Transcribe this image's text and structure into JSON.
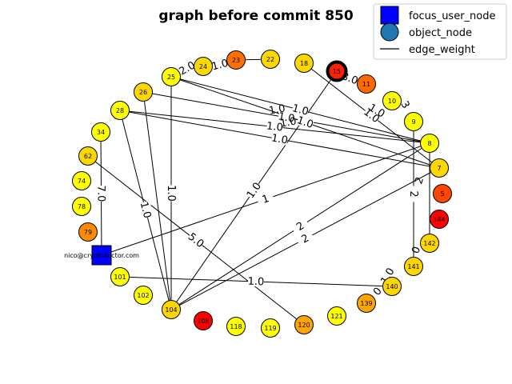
{
  "title": "graph before commit 850",
  "legend": {
    "placement": "top-right",
    "items": [
      {
        "label": "focus_user_node",
        "kind": "square",
        "color": "#0000ff"
      },
      {
        "label": "object_node",
        "kind": "circle",
        "color": "#1f77b4"
      },
      {
        "label": "edge_weight",
        "kind": "line",
        "color": "#000000"
      }
    ]
  },
  "focus_node": {
    "id": "nico@cryptosector.com",
    "label": "nico@cryptosector.com",
    "color": "#0000ff"
  },
  "nodes": [
    {
      "id": "15",
      "color": "#ff2000",
      "highlight": true
    },
    {
      "id": "11",
      "color": "#ff6a00"
    },
    {
      "id": "10",
      "color": "#ffff00"
    },
    {
      "id": "9",
      "color": "#ffff00"
    },
    {
      "id": "8",
      "color": "#ffff00"
    },
    {
      "id": "7",
      "color": "#ffd700"
    },
    {
      "id": "5",
      "color": "#ff4500"
    },
    {
      "id": "144",
      "color": "#ff0000"
    },
    {
      "id": "142",
      "color": "#ffd700"
    },
    {
      "id": "141",
      "color": "#ffd700"
    },
    {
      "id": "140",
      "color": "#ffd700"
    },
    {
      "id": "139",
      "color": "#ffa500"
    },
    {
      "id": "121",
      "color": "#ffff00"
    },
    {
      "id": "120",
      "color": "#ffa500"
    },
    {
      "id": "119",
      "color": "#ffff00"
    },
    {
      "id": "118",
      "color": "#ffff00"
    },
    {
      "id": "108",
      "color": "#ff0000"
    },
    {
      "id": "104",
      "color": "#ffd700"
    },
    {
      "id": "102",
      "color": "#ffff00"
    },
    {
      "id": "101",
      "color": "#ffff00"
    },
    {
      "id": "79",
      "color": "#ff8c00"
    },
    {
      "id": "78",
      "color": "#ffff00"
    },
    {
      "id": "74",
      "color": "#ffff00"
    },
    {
      "id": "62",
      "color": "#ffd700"
    },
    {
      "id": "34",
      "color": "#ffff00"
    },
    {
      "id": "28",
      "color": "#ffff00"
    },
    {
      "id": "26",
      "color": "#ffd700"
    },
    {
      "id": "25",
      "color": "#ffff00"
    },
    {
      "id": "24",
      "color": "#ffd700"
    },
    {
      "id": "23",
      "color": "#ff7000"
    },
    {
      "id": "22",
      "color": "#ffd700"
    },
    {
      "id": "18",
      "color": "#ffd700"
    }
  ],
  "edges": [
    {
      "source": "25",
      "target": "8",
      "weight": "1.0"
    },
    {
      "source": "25",
      "target": "7",
      "weight": "1.0"
    },
    {
      "source": "26",
      "target": "8",
      "weight": "1.0"
    },
    {
      "source": "26",
      "target": "104",
      "weight": ""
    },
    {
      "source": "28",
      "target": "8",
      "weight": "1.0"
    },
    {
      "source": "28",
      "target": "7",
      "weight": "1.0"
    },
    {
      "source": "28",
      "target": "104",
      "weight": "1.0"
    },
    {
      "source": "62",
      "target": "120",
      "weight": "5.0"
    },
    {
      "source": "34",
      "target": "nico@cryptosector.com",
      "weight": "7.0"
    },
    {
      "source": "18",
      "target": "7",
      "weight": "1.0"
    },
    {
      "source": "15",
      "target": "104",
      "weight": "1.0"
    },
    {
      "source": "8",
      "target": "104",
      "weight": "2"
    },
    {
      "source": "7",
      "target": "104",
      "weight": "2"
    },
    {
      "source": "9",
      "target": "141",
      "weight": "2"
    },
    {
      "source": "8",
      "target": "142",
      "weight": ""
    },
    {
      "source": "101",
      "target": "140",
      "weight": "1.0"
    },
    {
      "source": "25",
      "target": "104",
      "weight": "1.0"
    },
    {
      "source": "23",
      "target": "22",
      "weight": ""
    },
    {
      "source": "nico@cryptosector.com",
      "target": "8",
      "weight": "1"
    }
  ],
  "stray_edge_labels": [
    "2.0",
    "1.0",
    "3.0",
    "1.0",
    "3",
    "2",
    "0",
    "1.0",
    "0",
    "1.0",
    "1.0"
  ]
}
